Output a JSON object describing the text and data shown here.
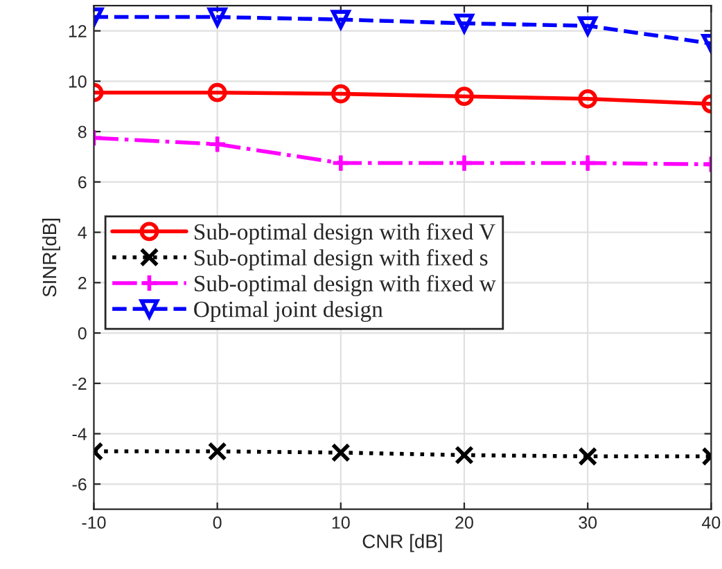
{
  "chart_data": {
    "type": "line",
    "xlabel": "CNR [dB]",
    "ylabel": "SINR[dB]",
    "x": [
      -10,
      0,
      10,
      20,
      30,
      40
    ],
    "series": [
      {
        "name": "Sub-optimal design with fixed V",
        "color": "#ff0000",
        "marker": "circle",
        "line_style": "solid",
        "values": [
          9.55,
          9.55,
          9.5,
          9.4,
          9.3,
          9.1
        ]
      },
      {
        "name": "Sub-optimal design with fixed s",
        "color": "#000000",
        "marker": "x",
        "line_style": "dotted",
        "values": [
          -4.7,
          -4.7,
          -4.75,
          -4.85,
          -4.9,
          -4.9
        ]
      },
      {
        "name": "Sub-optimal design with fixed w",
        "color": "#ff00ff",
        "marker": "plus",
        "line_style": "dashdot",
        "values": [
          7.75,
          7.5,
          6.75,
          6.75,
          6.75,
          6.7
        ]
      },
      {
        "name": "Optimal joint design",
        "color": "#0000ff",
        "marker": "triangle-down",
        "line_style": "dashed",
        "values": [
          12.55,
          12.55,
          12.45,
          12.3,
          12.2,
          11.5
        ]
      }
    ],
    "xlim": [
      -10,
      40
    ],
    "xticks": [
      -10,
      0,
      10,
      20,
      30,
      40
    ],
    "ylim": [
      -7,
      13
    ],
    "yticks": [
      -6,
      -4,
      -2,
      0,
      2,
      4,
      6,
      8,
      10,
      12
    ],
    "grid": true,
    "legend": "left"
  }
}
